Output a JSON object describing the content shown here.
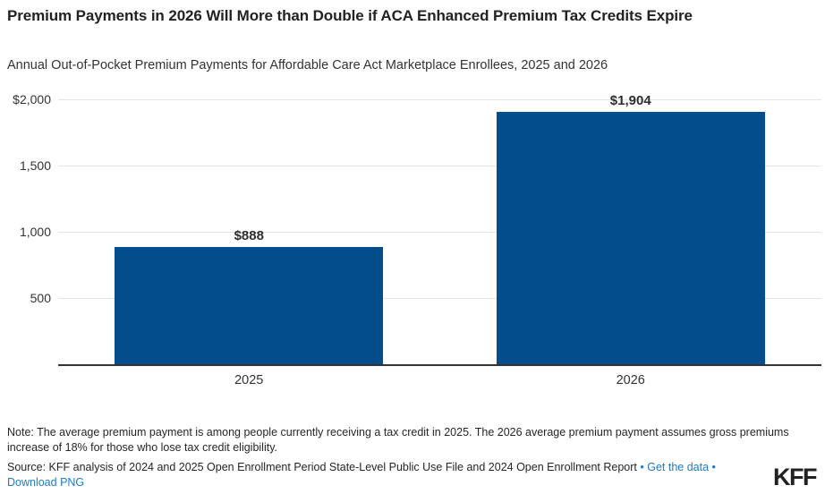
{
  "header": {
    "title": "Premium Payments in 2026 Will More than Double if ACA Enhanced Premium Tax Credits Expire",
    "subtitle": "Annual Out-of-Pocket Premium Payments for Affordable Care Act Marketplace Enrollees, 2025 and 2026"
  },
  "chart_data": {
    "type": "bar",
    "title": "Annual Out-of-Pocket Premium Payments for Affordable Care Act Marketplace Enrollees, 2025 and 2026",
    "categories": [
      "2025",
      "2026"
    ],
    "values": [
      888,
      1904
    ],
    "value_labels": [
      "$888",
      "$1,904"
    ],
    "y_ticks": [
      {
        "value": 2000,
        "label": "$2,000"
      },
      {
        "value": 1500,
        "label": "1,500"
      },
      {
        "value": 1000,
        "label": "1,000"
      },
      {
        "value": 500,
        "label": "500"
      }
    ],
    "ylim": [
      0,
      2000
    ],
    "xlabel": "",
    "ylabel": "",
    "grid": true,
    "legend": "none",
    "bar_color": "#034d8c",
    "gridline_color": "#e4e4e4",
    "axis_color": "#333333"
  },
  "footer": {
    "note": "Note: The average premium payment is among people currently receiving a tax credit in 2025. The 2026 average premium payment assumes gross premiums increase of 18% for those who lose tax credit eligibility.",
    "source_prefix": "Source: KFF analysis of 2024 and 2025 Open Enrollment Period State-Level Public Use File and 2024 Open Enrollment Report",
    "bullet": "•",
    "get_data_label": "Get the data",
    "download_label": "Download PNG",
    "logo": "KFF",
    "link_color": "#1f7bc7"
  }
}
